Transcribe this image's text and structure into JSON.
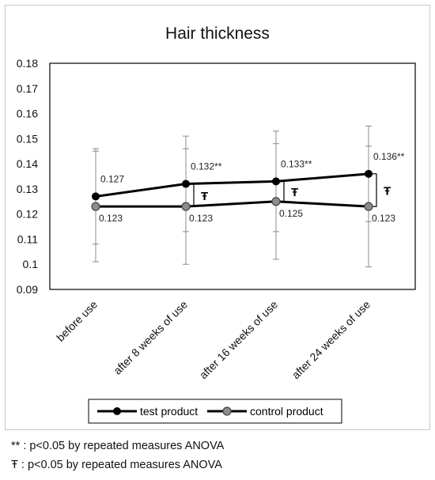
{
  "chart_data": {
    "type": "line",
    "title": "Hair thickness",
    "categories": [
      "before use",
      "after 8 weeks of use",
      "after 16 weeks of use",
      "after 24 weeks of use"
    ],
    "ylim": [
      0.09,
      0.18
    ],
    "yticks": [
      "0.09",
      "0.1",
      "0.11",
      "0.12",
      "0.13",
      "0.14",
      "0.15",
      "0.16",
      "0.17",
      "0.18"
    ],
    "grid": false,
    "legend_position": "bottom",
    "series": [
      {
        "name": "test product",
        "values": [
          0.127,
          0.132,
          0.133,
          0.136
        ],
        "labels": [
          "0.127",
          "0.132**",
          "0.133**",
          "0.136**"
        ],
        "error_upper": [
          0.145,
          0.151,
          0.153,
          0.155
        ],
        "error_lower": [
          0.108,
          0.113,
          0.113,
          0.117
        ],
        "color": "#000000",
        "marker": "filled-circle"
      },
      {
        "name": "control product",
        "values": [
          0.123,
          0.123,
          0.125,
          0.123
        ],
        "labels": [
          "0.123",
          "0.123",
          "0.125",
          "0.123"
        ],
        "error_upper": [
          0.146,
          0.146,
          0.148,
          0.147
        ],
        "error_lower": [
          0.101,
          0.1,
          0.102,
          0.099
        ],
        "color": "#555555",
        "marker": "gray-circle"
      }
    ],
    "significance_marker": "Ŧ",
    "significance_brackets": [
      1,
      2,
      3
    ]
  },
  "notes": {
    "line1": "** : p<0.05 by repeated measures ANOVA",
    "line2": "Ŧ : p<0.05 by repeated measures ANOVA"
  }
}
